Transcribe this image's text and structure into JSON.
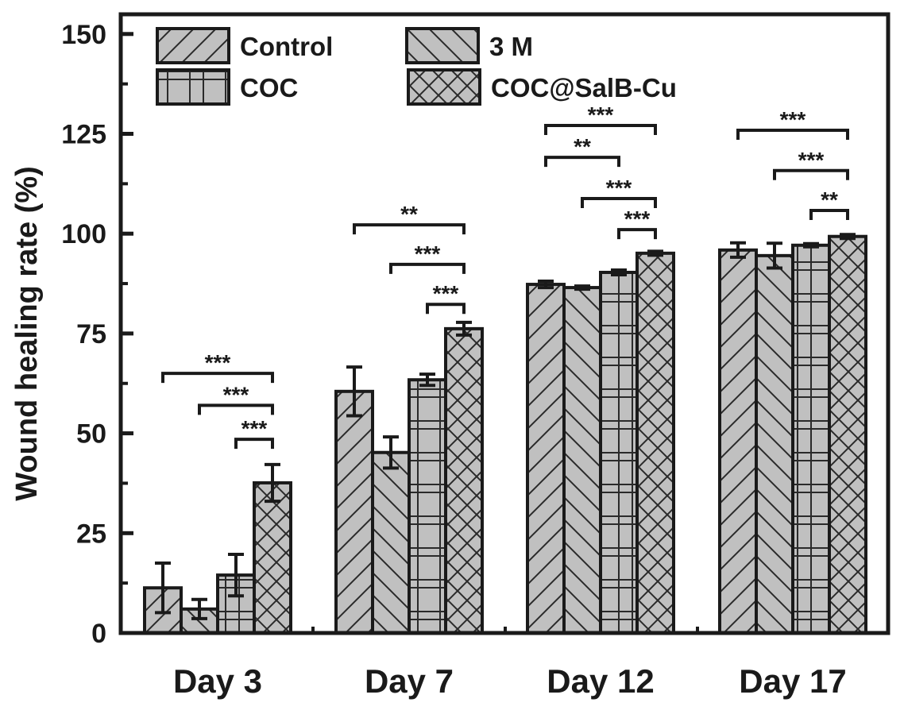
{
  "chart_data": {
    "type": "bar",
    "title": "",
    "xlabel": "",
    "ylabel": "Wound healing rate (%)",
    "ylim": [
      0,
      155
    ],
    "yticks": [
      0,
      25,
      50,
      75,
      100,
      125,
      150
    ],
    "yticklabels": [
      "0",
      "25",
      "50",
      "75",
      "100",
      "125",
      "150"
    ],
    "minor_yticks": [
      12.5,
      37.5,
      62.5,
      87.5,
      112.5,
      137.5
    ],
    "categories": [
      "Day 3",
      "Day 7",
      "Day 12",
      "Day 17"
    ],
    "legend_position": "top-left",
    "fill_color": "#c0c0c0",
    "edge_color": "#1a1a1a",
    "series": [
      {
        "name": "Control",
        "pattern": "forward-diagonal",
        "values": [
          11.3,
          60.5,
          87.3,
          95.9
        ],
        "errors": [
          6.2,
          6.1,
          0.8,
          1.8
        ]
      },
      {
        "name": "3 M",
        "pattern": "back-diagonal",
        "values": [
          6.0,
          45.2,
          86.5,
          94.5
        ],
        "errors": [
          2.4,
          3.9,
          0.4,
          3.1
        ]
      },
      {
        "name": "COC",
        "pattern": "grid",
        "values": [
          14.5,
          63.4,
          90.3,
          97.1
        ],
        "errors": [
          5.2,
          1.4,
          0.6,
          0.4
        ]
      },
      {
        "name": "COC@SalB-Cu",
        "pattern": "cross-hatch",
        "values": [
          37.6,
          76.2,
          95.1,
          99.3
        ],
        "errors": [
          4.6,
          1.6,
          0.5,
          0.5
        ]
      }
    ],
    "significance": [
      {
        "category": 0,
        "from": 0,
        "to": 3,
        "level": 65.0,
        "label": "***"
      },
      {
        "category": 0,
        "from": 1,
        "to": 3,
        "level": 57.0,
        "label": "***"
      },
      {
        "category": 0,
        "from": 2,
        "to": 3,
        "level": 48.5,
        "label": "***"
      },
      {
        "category": 1,
        "from": 0,
        "to": 3,
        "level": 102.2,
        "label": "**"
      },
      {
        "category": 1,
        "from": 1,
        "to": 3,
        "level": 92.3,
        "label": "***"
      },
      {
        "category": 1,
        "from": 2,
        "to": 3,
        "level": 82.3,
        "label": "***"
      },
      {
        "category": 2,
        "from": 0,
        "to": 3,
        "level": 127.1,
        "label": "***"
      },
      {
        "category": 2,
        "from": 0,
        "to": 2,
        "level": 119.1,
        "label": "**"
      },
      {
        "category": 2,
        "from": 1,
        "to": 3,
        "level": 108.8,
        "label": "***"
      },
      {
        "category": 2,
        "from": 2,
        "to": 3,
        "level": 101.0,
        "label": "***"
      },
      {
        "category": 3,
        "from": 0,
        "to": 3,
        "level": 125.9,
        "label": "***"
      },
      {
        "category": 3,
        "from": 1,
        "to": 3,
        "level": 115.8,
        "label": "***"
      },
      {
        "category": 3,
        "from": 2,
        "to": 3,
        "level": 105.8,
        "label": "**"
      }
    ]
  }
}
